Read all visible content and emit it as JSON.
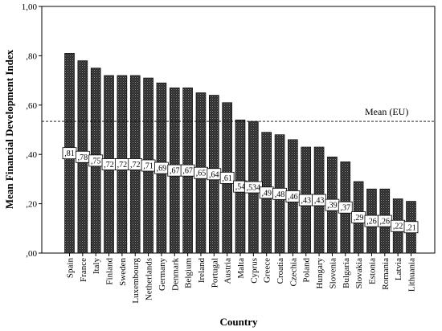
{
  "chart_data": {
    "type": "bar",
    "title": "",
    "xlabel": "Country",
    "ylabel": "Mean Financial Development Index",
    "ylim": [
      0,
      1
    ],
    "yticks": [
      0,
      0.2,
      0.4,
      0.6,
      0.8,
      1.0
    ],
    "ytick_labels": [
      ",00",
      ",20",
      ",40",
      ",60",
      ",80",
      "1,00"
    ],
    "grid": false,
    "legend": "none",
    "bar_fill": "#1a1a1a",
    "categories": [
      "Spain",
      "France",
      "Italy",
      "Finland",
      "Sweden",
      "Luxembourg",
      "Netherlands",
      "Germany",
      "Denmark",
      "Belgium",
      "Ireland",
      "Portugal",
      "Austria",
      "Malta",
      "Cyprus",
      "Greece",
      "Croatia",
      "Czechia",
      "Poland",
      "Hungary",
      "Slovenia",
      "Bulgaria",
      "Slovakia",
      "Estonia",
      "Romania",
      "Latvia",
      "Lithuania"
    ],
    "values": [
      0.81,
      0.78,
      0.75,
      0.72,
      0.72,
      0.72,
      0.71,
      0.69,
      0.67,
      0.67,
      0.65,
      0.64,
      0.61,
      0.54,
      0.534,
      0.49,
      0.48,
      0.46,
      0.43,
      0.43,
      0.39,
      0.37,
      0.29,
      0.26,
      0.26,
      0.22,
      0.21
    ],
    "value_labels": [
      ",81",
      ",78",
      ",75",
      ",72",
      ",72",
      ",72",
      ",71",
      ",69",
      ",67",
      ",67",
      ",65",
      ",64",
      ",61",
      ",54",
      ",534",
      ",49",
      ",48",
      ",46",
      ",43",
      ",43",
      ",39",
      ",37",
      ",29",
      ",26",
      ",26",
      ",22",
      ",21"
    ],
    "reference_line": {
      "value": 0.534,
      "label": "Mean (EU)",
      "style": "dashed"
    }
  }
}
